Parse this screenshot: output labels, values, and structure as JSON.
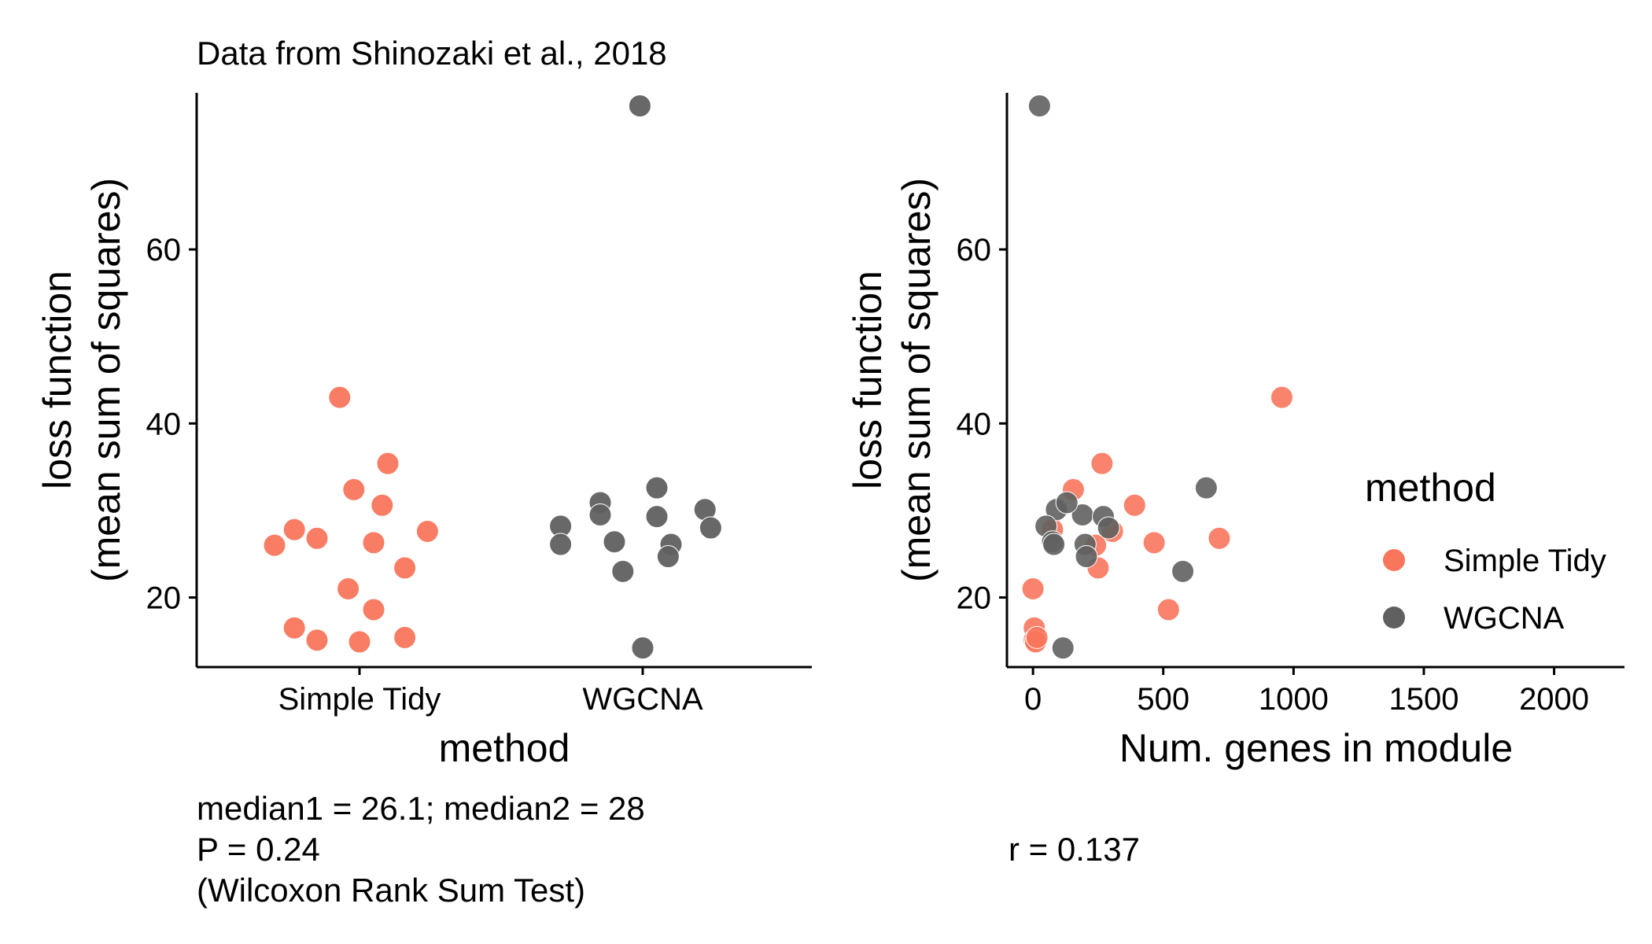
{
  "colors": {
    "Simple Tidy": "#f8765c",
    "WGCNA": "#606060"
  },
  "chart_data": [
    {
      "type": "scatter",
      "title": "Data from Shinozaki et al., 2018",
      "xlabel": "method",
      "ylabel_line1": "loss function",
      "ylabel_line2": "(mean sum of squares)",
      "categories": [
        "Simple Tidy",
        "WGCNA"
      ],
      "ylim": [
        12,
        78
      ],
      "yticks": [
        20,
        40,
        60
      ],
      "series": [
        {
          "name": "Simple Tidy",
          "points": [
            {
              "category": "Simple Tidy",
              "jitter": -0.3,
              "y": 26.0
            },
            {
              "category": "Simple Tidy",
              "jitter": -0.23,
              "y": 27.8
            },
            {
              "category": "Simple Tidy",
              "jitter": -0.15,
              "y": 26.8
            },
            {
              "category": "Simple Tidy",
              "jitter": -0.07,
              "y": 43.0
            },
            {
              "category": "Simple Tidy",
              "jitter": 0.1,
              "y": 35.4
            },
            {
              "category": "Simple Tidy",
              "jitter": -0.02,
              "y": 32.4
            },
            {
              "category": "Simple Tidy",
              "jitter": 0.08,
              "y": 30.6
            },
            {
              "category": "Simple Tidy",
              "jitter": 0.05,
              "y": 26.3
            },
            {
              "category": "Simple Tidy",
              "jitter": 0.24,
              "y": 27.6
            },
            {
              "category": "Simple Tidy",
              "jitter": 0.16,
              "y": 23.4
            },
            {
              "category": "Simple Tidy",
              "jitter": -0.04,
              "y": 21.0
            },
            {
              "category": "Simple Tidy",
              "jitter": 0.05,
              "y": 18.6
            },
            {
              "category": "Simple Tidy",
              "jitter": -0.23,
              "y": 16.5
            },
            {
              "category": "Simple Tidy",
              "jitter": -0.15,
              "y": 15.1
            },
            {
              "category": "Simple Tidy",
              "jitter": 0.0,
              "y": 14.9
            },
            {
              "category": "Simple Tidy",
              "jitter": 0.16,
              "y": 15.4
            }
          ]
        },
        {
          "name": "WGCNA",
          "points": [
            {
              "category": "WGCNA",
              "jitter": -0.29,
              "y": 28.2
            },
            {
              "category": "WGCNA",
              "jitter": -0.29,
              "y": 26.1
            },
            {
              "category": "WGCNA",
              "jitter": -0.15,
              "y": 30.9
            },
            {
              "category": "WGCNA",
              "jitter": -0.15,
              "y": 29.5
            },
            {
              "category": "WGCNA",
              "jitter": -0.1,
              "y": 26.4
            },
            {
              "category": "WGCNA",
              "jitter": -0.07,
              "y": 23.0
            },
            {
              "category": "WGCNA",
              "jitter": 0.05,
              "y": 32.6
            },
            {
              "category": "WGCNA",
              "jitter": 0.05,
              "y": 29.3
            },
            {
              "category": "WGCNA",
              "jitter": 0.1,
              "y": 26.1
            },
            {
              "category": "WGCNA",
              "jitter": 0.09,
              "y": 24.7
            },
            {
              "category": "WGCNA",
              "jitter": 0.22,
              "y": 30.1
            },
            {
              "category": "WGCNA",
              "jitter": 0.24,
              "y": 28.0
            },
            {
              "category": "WGCNA",
              "jitter": -0.01,
              "y": 76.5
            },
            {
              "category": "WGCNA",
              "jitter": 0.0,
              "y": 14.2
            }
          ]
        }
      ],
      "caption": [
        "median1 = 26.1; median2 = 28",
        "P = 0.24",
        "(Wilcoxon Rank Sum Test)"
      ],
      "grid": false
    },
    {
      "type": "scatter",
      "xlabel": "Num. genes in module",
      "ylabel_line1": "loss function",
      "ylabel_line2": "(mean sum of squares)",
      "xlim": [
        -100,
        2270
      ],
      "xticks": [
        0,
        500,
        1000,
        1500,
        2000
      ],
      "ylim": [
        12,
        78
      ],
      "yticks": [
        20,
        40,
        60
      ],
      "legend": {
        "title": "method",
        "position": "right",
        "entries": [
          "Simple Tidy",
          "WGCNA"
        ]
      },
      "series": [
        {
          "name": "Simple Tidy",
          "points": [
            {
              "x": 955,
              "y": 43.0
            },
            {
              "x": 265,
              "y": 35.4
            },
            {
              "x": 155,
              "y": 32.4
            },
            {
              "x": 390,
              "y": 30.6
            },
            {
              "x": 305,
              "y": 27.6
            },
            {
              "x": 715,
              "y": 26.8
            },
            {
              "x": 465,
              "y": 26.3
            },
            {
              "x": 240,
              "y": 26.0
            },
            {
              "x": 75,
              "y": 27.8
            },
            {
              "x": 250,
              "y": 23.4
            },
            {
              "x": 0,
              "y": 21.0
            },
            {
              "x": 520,
              "y": 18.6
            },
            {
              "x": 5,
              "y": 16.5
            },
            {
              "x": 5,
              "y": 15.1
            },
            {
              "x": 10,
              "y": 14.9
            },
            {
              "x": 15,
              "y": 15.4
            }
          ]
        },
        {
          "name": "WGCNA",
          "points": [
            {
              "x": 25,
              "y": 76.5
            },
            {
              "x": 665,
              "y": 32.6
            },
            {
              "x": 90,
              "y": 30.1
            },
            {
              "x": 190,
              "y": 29.5
            },
            {
              "x": 270,
              "y": 29.3
            },
            {
              "x": 50,
              "y": 28.2
            },
            {
              "x": 290,
              "y": 28.0
            },
            {
              "x": 75,
              "y": 26.4
            },
            {
              "x": 80,
              "y": 26.1
            },
            {
              "x": 200,
              "y": 26.1
            },
            {
              "x": 205,
              "y": 24.7
            },
            {
              "x": 575,
              "y": 23.0
            },
            {
              "x": 115,
              "y": 14.2
            },
            {
              "x": 130,
              "y": 30.9
            }
          ]
        }
      ],
      "caption": [
        "r = 0.137"
      ],
      "grid": false
    }
  ]
}
